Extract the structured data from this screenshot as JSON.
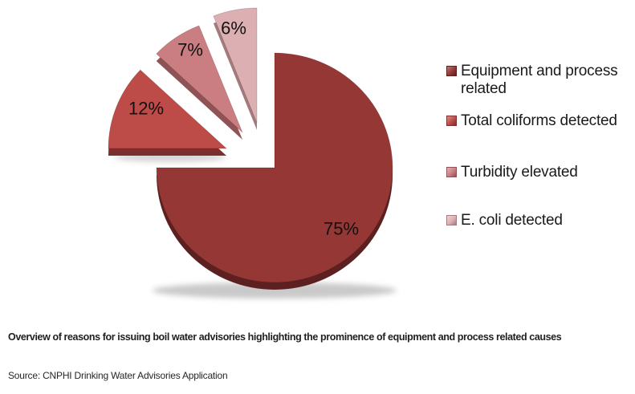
{
  "chart_data": {
    "type": "pie",
    "style": "3d-exploded",
    "title": "",
    "unit": "%",
    "direction": "clockwise",
    "start_angle": 0,
    "legend_position": "right",
    "categories": [
      "Equipment and process related",
      "Total coliforms detected",
      "Turbidity elevated",
      "E. coli detected"
    ],
    "values": [
      75,
      12,
      7,
      6
    ],
    "slices": [
      {
        "label": "Equipment and process related",
        "value": 75,
        "display": "75%",
        "color": "#943735",
        "dark": "#5c2020",
        "light": "#b97c7a",
        "exploded": false
      },
      {
        "label": "Total coliforms detected",
        "value": 12,
        "display": "12%",
        "color": "#bd4b48",
        "dark": "#7d2f2d",
        "light": "#d79390",
        "exploded": true
      },
      {
        "label": "Turbidity elevated",
        "value": 7,
        "display": "7%",
        "color": "#ca7e81",
        "dark": "#8f5356",
        "light": "#e2b4b6",
        "exploded": true
      },
      {
        "label": "E. coli detected",
        "value": 6,
        "display": "6%",
        "color": "#dcb0b3",
        "dark": "#a37a7d",
        "light": "#eed5d6",
        "exploded": true
      }
    ],
    "label_color": "#111111",
    "shadow_color": "#c9c9c9"
  },
  "caption": "Overview of reasons for issuing boil water advisories highlighting the prominence of equipment and process related causes",
  "source": "Source: CNPHI Drinking Water Advisories Application"
}
